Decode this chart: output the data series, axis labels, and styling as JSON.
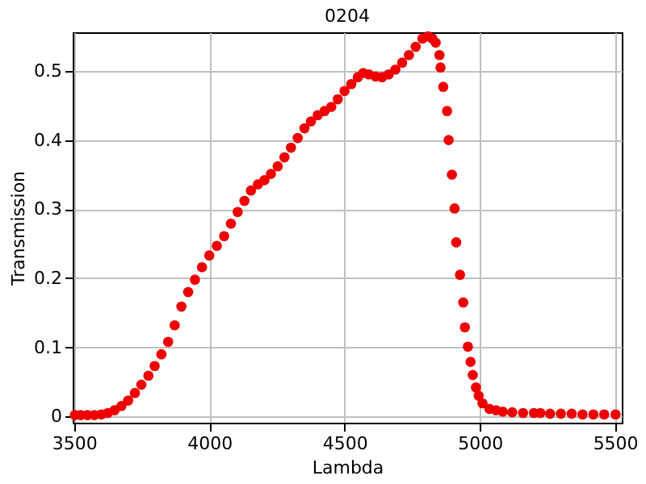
{
  "chart_data": {
    "type": "scatter",
    "title": "0204",
    "xlabel": "Lambda",
    "ylabel": "Transmission",
    "xlim": [
      3495,
      5525
    ],
    "ylim": [
      -0.009,
      0.556
    ],
    "xticks": [
      3500,
      4000,
      4500,
      5000,
      5500
    ],
    "yticks": [
      0,
      0.1,
      0.2,
      0.3,
      0.4,
      0.5
    ],
    "grid": true,
    "marker": "circle",
    "series": [
      {
        "color": "#ee0000",
        "x": [
          3503,
          3525,
          3550,
          3575,
          3601,
          3625,
          3650,
          3675,
          3700,
          3725,
          3749,
          3775,
          3798,
          3823,
          3848,
          3872,
          3897,
          3922,
          3947,
          3973,
          4000,
          4028,
          4055,
          4080,
          4105,
          4130,
          4154,
          4180,
          4204,
          4228,
          4253,
          4278,
          4302,
          4327,
          4352,
          4376,
          4401,
          4426,
          4451,
          4475,
          4500,
          4525,
          4549,
          4569,
          4590,
          4615,
          4639,
          4663,
          4688,
          4713,
          4738,
          4763,
          4788,
          4808,
          4825,
          4837,
          4851,
          4855,
          4865,
          4879,
          4885,
          4897,
          4907,
          4913,
          4927,
          4939,
          4945,
          4956,
          4966,
          4974,
          4986,
          4996,
          5010,
          5036,
          5060,
          5085,
          5120,
          5160,
          5200,
          5224,
          5260,
          5300,
          5340,
          5380,
          5420,
          5460,
          5502
        ],
        "values": [
          0.002,
          0.002,
          0.002,
          0.002,
          0.003,
          0.005,
          0.009,
          0.015,
          0.023,
          0.034,
          0.046,
          0.059,
          0.073,
          0.09,
          0.108,
          0.132,
          0.159,
          0.18,
          0.198,
          0.216,
          0.233,
          0.247,
          0.261,
          0.279,
          0.296,
          0.312,
          0.327,
          0.336,
          0.342,
          0.351,
          0.362,
          0.375,
          0.389,
          0.403,
          0.417,
          0.427,
          0.436,
          0.442,
          0.448,
          0.459,
          0.471,
          0.481,
          0.491,
          0.497,
          0.495,
          0.492,
          0.491,
          0.495,
          0.502,
          0.512,
          0.523,
          0.535,
          0.547,
          0.55,
          0.547,
          0.541,
          0.523,
          0.505,
          0.477,
          0.442,
          0.4,
          0.35,
          0.301,
          0.252,
          0.205,
          0.165,
          0.129,
          0.101,
          0.079,
          0.06,
          0.042,
          0.03,
          0.019,
          0.011,
          0.009,
          0.007,
          0.006,
          0.005,
          0.005,
          0.005,
          0.004,
          0.004,
          0.004,
          0.003,
          0.003,
          0.003,
          0.003
        ]
      }
    ]
  }
}
